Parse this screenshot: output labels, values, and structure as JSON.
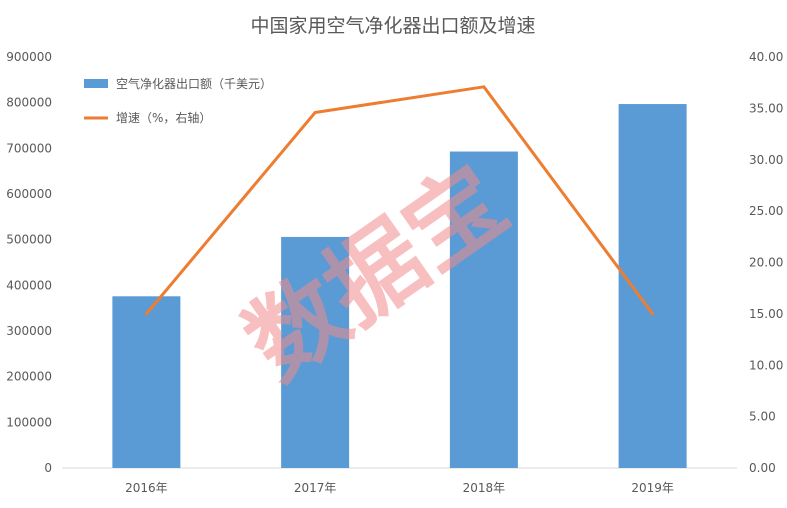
{
  "chart_data": {
    "type": "bar",
    "title": "中国家用空气净化器出口额及增速",
    "categories": [
      "2016年",
      "2017年",
      "2018年",
      "2019年"
    ],
    "series": [
      {
        "name": "空气净化器出口额（千美元）",
        "type": "bar",
        "axis": "left",
        "color": "#5b9bd5",
        "values": [
          376000,
          506000,
          693000,
          797000
        ]
      },
      {
        "name": "增速（%，右轴）",
        "type": "line",
        "axis": "right",
        "color": "#ed7d31",
        "values": [
          15.0,
          34.6,
          37.1,
          15.0
        ]
      }
    ],
    "y_left": {
      "min": 0,
      "max": 900000,
      "step": 100000,
      "tick_labels": [
        "0",
        "100000",
        "200000",
        "300000",
        "400000",
        "500000",
        "600000",
        "700000",
        "800000",
        "900000"
      ]
    },
    "y_right": {
      "min": 0,
      "max": 40,
      "step": 5,
      "tick_labels": [
        "0.00",
        "5.00",
        "10.00",
        "15.00",
        "20.00",
        "25.00",
        "30.00",
        "35.00",
        "40.00"
      ]
    },
    "xlabel": "",
    "ylabel": "",
    "grid": false,
    "legend": "top-left",
    "watermark": "数据宝"
  }
}
